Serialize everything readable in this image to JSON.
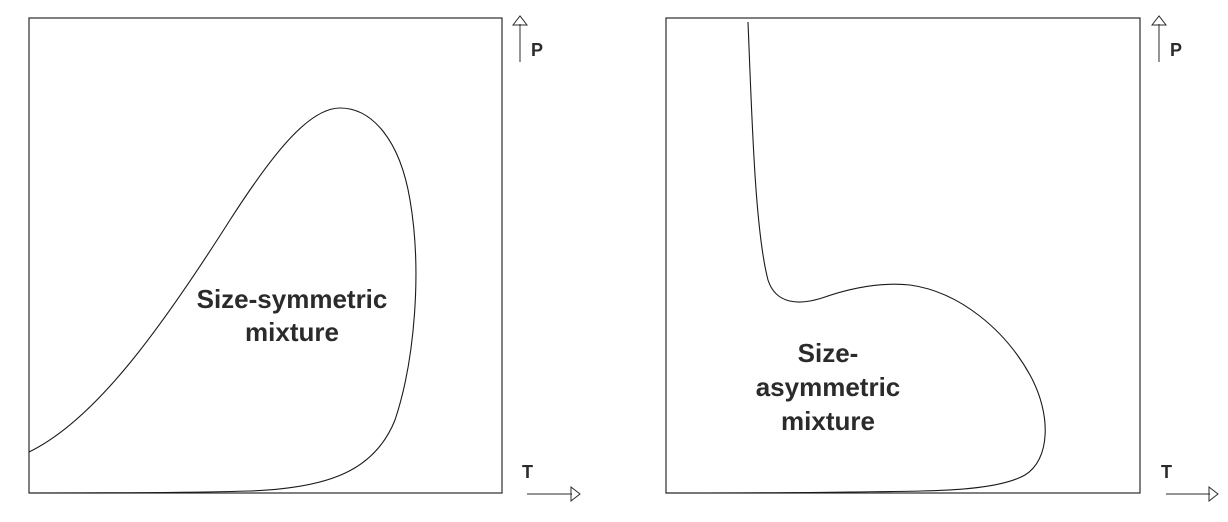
{
  "panels": [
    {
      "curve_label_lines": [
        "Size-symmetric",
        "mixture"
      ],
      "y_axis_label": "P",
      "x_axis_label": "T"
    },
    {
      "curve_label_lines": [
        "Size-",
        "asymmetric",
        "mixture"
      ],
      "y_axis_label": "P",
      "x_axis_label": "T"
    }
  ]
}
